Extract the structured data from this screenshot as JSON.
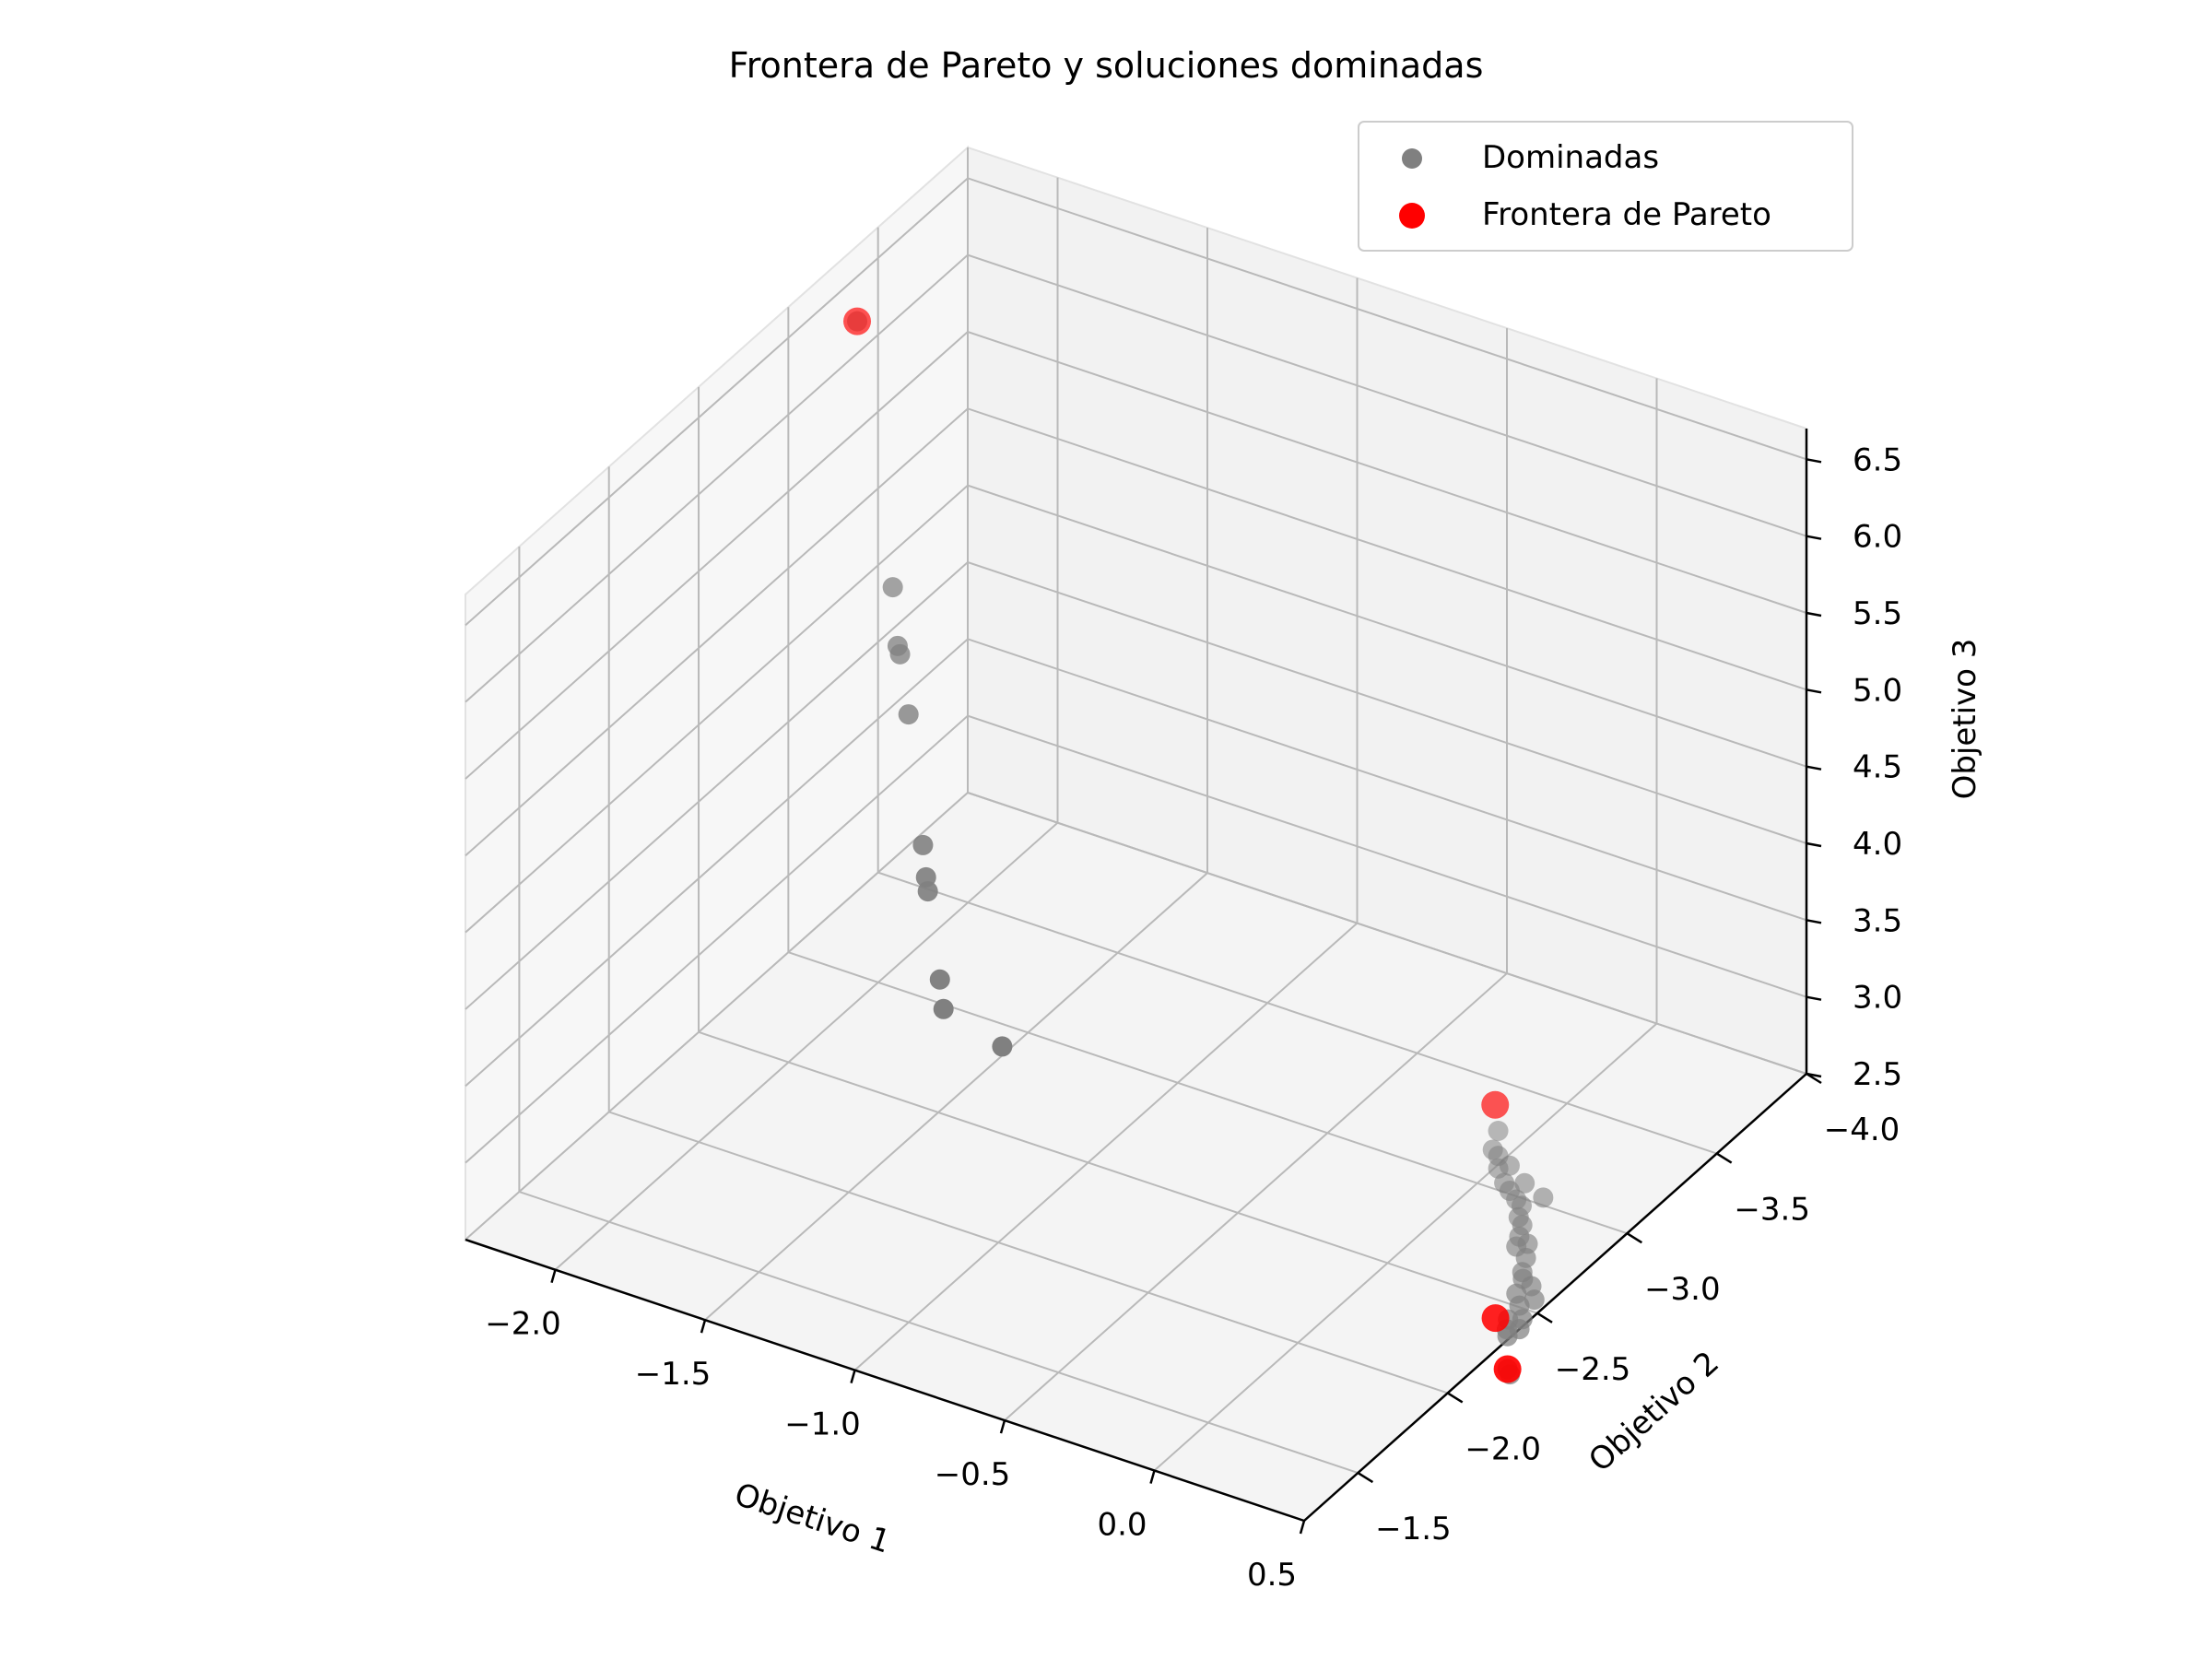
{
  "chart_data": {
    "type": "scatter",
    "projection": "3d",
    "title": "Frontera de Pareto y soluciones dominadas",
    "xlabel": "Objetivo 1",
    "ylabel": "Objetivo 2",
    "zlabel": "Objetivo 3",
    "xlim": [
      -2.3,
      0.5
    ],
    "ylim": [
      -4.0,
      -1.2
    ],
    "zlim": [
      2.5,
      6.7
    ],
    "x_ticks": [
      "−2.0",
      "−1.5",
      "−1.0",
      "−0.5",
      "0.0",
      "0.5"
    ],
    "y_ticks": [
      "−4.0",
      "−3.5",
      "−3.0",
      "−2.5",
      "−2.0",
      "−1.5"
    ],
    "z_ticks": [
      "2.5",
      "3.0",
      "3.5",
      "4.0",
      "4.5",
      "5.0",
      "5.5",
      "6.0",
      "6.5"
    ],
    "grid": true,
    "legend_position": "upper-right",
    "colors": {
      "dominated": "#808080",
      "pareto": "#ff0000"
    },
    "series": [
      {
        "name": "Dominadas",
        "points": [
          [
            -2.22,
            -3.25,
            6.4
          ],
          [
            -1.61,
            -2.43,
            5.92
          ],
          [
            -1.48,
            -2.24,
            5.82
          ],
          [
            -1.46,
            -2.22,
            5.8
          ],
          [
            -1.33,
            -2.05,
            5.67
          ],
          [
            -1.06,
            -1.68,
            5.38
          ],
          [
            -0.99,
            -1.58,
            5.32
          ],
          [
            -0.96,
            -1.54,
            5.29
          ],
          [
            -0.77,
            -1.29,
            5.1
          ],
          [
            -0.71,
            -1.21,
            5.03
          ],
          [
            -0.52,
            -1.22,
            4.9
          ],
          [
            -0.05,
            -3.2,
            2.6
          ],
          [
            -0.02,
            -3.12,
            2.58
          ],
          [
            0.01,
            -3.1,
            2.58
          ],
          [
            0.04,
            -3.05,
            2.57
          ],
          [
            0.06,
            -3.08,
            2.57
          ],
          [
            0.09,
            -3.0,
            2.56
          ],
          [
            0.12,
            -2.98,
            2.55
          ],
          [
            0.14,
            -3.03,
            2.56
          ],
          [
            0.16,
            -2.95,
            2.55
          ],
          [
            0.19,
            -2.93,
            2.55
          ],
          [
            0.21,
            -2.88,
            2.54
          ],
          [
            0.24,
            -2.85,
            2.54
          ],
          [
            0.22,
            -3.0,
            2.55
          ],
          [
            0.26,
            -2.8,
            2.53
          ],
          [
            0.28,
            -2.75,
            2.53
          ],
          [
            0.3,
            -2.78,
            2.53
          ],
          [
            0.33,
            -2.72,
            2.52
          ],
          [
            0.36,
            -2.65,
            2.52
          ],
          [
            0.38,
            -2.62,
            2.52
          ],
          [
            0.4,
            -2.55,
            2.51
          ],
          [
            0.42,
            -2.6,
            2.52
          ],
          [
            0.44,
            -2.5,
            2.51
          ],
          [
            0.46,
            -2.55,
            2.51
          ],
          [
            0.48,
            -2.45,
            2.5
          ],
          [
            0.5,
            -2.4,
            2.5
          ],
          [
            0.45,
            -2.42,
            2.51
          ],
          [
            0.47,
            -2.38,
            2.5
          ],
          [
            0.49,
            -2.35,
            2.5
          ],
          [
            0.58,
            -2.2,
            2.5
          ],
          [
            0.6,
            -2.18,
            2.5
          ]
        ]
      },
      {
        "name": "Frontera de Pareto",
        "points": [
          [
            -2.22,
            -3.25,
            6.4
          ],
          [
            -0.12,
            -3.3,
            2.62
          ],
          [
            0.42,
            -2.4,
            2.52
          ],
          [
            0.58,
            -2.2,
            2.5
          ]
        ]
      }
    ]
  }
}
